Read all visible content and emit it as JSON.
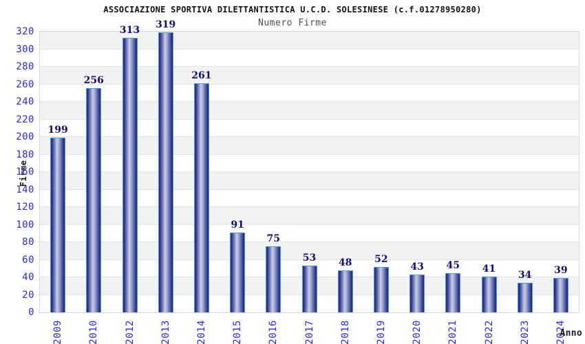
{
  "header": {
    "title": "ASSOCIAZIONE SPORTIVA DILETTANTISTICA U.C.D. SOLESINESE (c.f.01278950280)",
    "subtitle": "Numero Firme"
  },
  "chart_data": {
    "type": "bar",
    "title": "ASSOCIAZIONE SPORTIVA DILETTANTISTICA U.C.D. SOLESINESE (c.f.01278950280)",
    "subtitle": "Numero Firme",
    "categories": [
      "2009",
      "2010",
      "2012",
      "2013",
      "2014",
      "2015",
      "2016",
      "2017",
      "2018",
      "2019",
      "2020",
      "2021",
      "2022",
      "2023",
      "2024"
    ],
    "values": [
      199,
      256,
      313,
      319,
      261,
      91,
      75,
      53,
      48,
      52,
      43,
      45,
      41,
      34,
      39
    ],
    "xlabel": "Anno",
    "ylabel": "Firme",
    "ylim": [
      0,
      320
    ],
    "ytick_step": 20,
    "grid": true,
    "legend": "none",
    "colors": {
      "bar_edge_dark": "#1f2878",
      "bar_mid_dark": "#323c8e",
      "bar_light": "#c6cce8",
      "bar_light2": "#aab2d8",
      "bar_border": "#4d9be8",
      "value_label": "#10106e",
      "tick_label": "#2b2bd0",
      "band_gray": "#f2f2f2",
      "band_white": "#ffffff",
      "gridline": "#e4e4e4",
      "plot_border": "#d6d6d6",
      "title": "#111111",
      "subtitle": "#4d4d4d"
    }
  }
}
